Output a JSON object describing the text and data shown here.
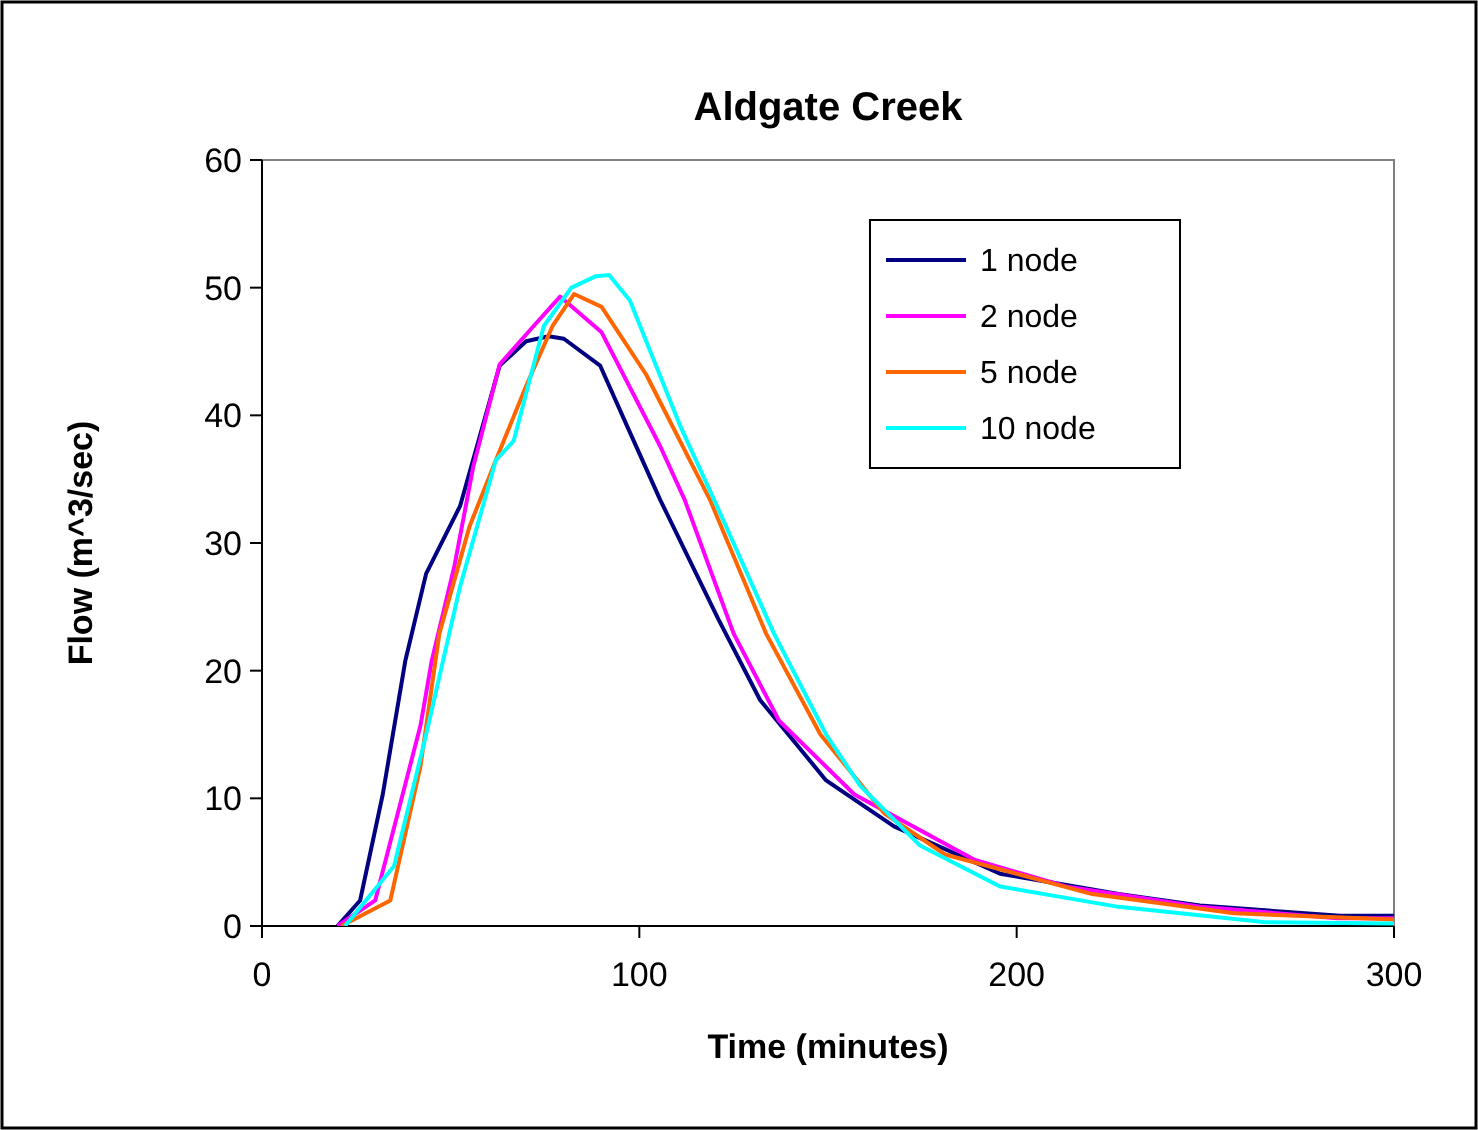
{
  "chart_data": {
    "type": "line",
    "title": "Aldgate Creek",
    "xlabel": "Time (minutes)",
    "ylabel": "Flow (m^3/sec)",
    "xlim": [
      0,
      300
    ],
    "xticks": [
      0,
      100,
      200,
      300
    ],
    "ylim": [
      0,
      60
    ],
    "yticks": [
      0,
      10,
      20,
      30,
      40,
      50,
      60
    ],
    "grid": false,
    "legend": "top right",
    "marker": "none",
    "line_style": "solid",
    "series": [
      {
        "name": "1 node",
        "color": "#000080",
        "x": [
          20,
          26,
          32,
          38,
          43.5,
          52.5,
          63,
          70,
          76,
          80,
          89.6,
          97,
          105.5,
          121,
          132,
          149.5,
          167.5,
          195.6,
          227,
          248.6,
          285.7,
          300
        ],
        "values": [
          0,
          2,
          10.3,
          20.8,
          27.6,
          32.9,
          43.9,
          45.8,
          46.2,
          46,
          43.9,
          39,
          33.4,
          24,
          17.7,
          11.4,
          7.8,
          4.1,
          2.5,
          1.6,
          0.8,
          0.8
        ]
      },
      {
        "name": "2 node",
        "color": "#ff00ff",
        "x": [
          20,
          30,
          42,
          45,
          51,
          56,
          63,
          72,
          79,
          90,
          105.5,
          112,
          125,
          137,
          157,
          188.7,
          213,
          248.6,
          285,
          300
        ],
        "values": [
          0,
          2,
          15.7,
          20.8,
          28.2,
          36,
          44,
          47,
          49.3,
          46.5,
          37.6,
          33.4,
          22.9,
          16.1,
          10.3,
          5.2,
          3.1,
          1.5,
          0.6,
          0.6
        ]
      },
      {
        "name": "5 node",
        "color": "#ff6600",
        "x": [
          21,
          34,
          42,
          47,
          55,
          62,
          70,
          77,
          82.7,
          90,
          101.8,
          118.7,
          133.6,
          148,
          165,
          181,
          220,
          257.6,
          300
        ],
        "values": [
          0,
          2,
          12.5,
          22.9,
          31.3,
          36.5,
          42.3,
          47,
          49.5,
          48.5,
          43.2,
          33.4,
          22.9,
          15,
          8.8,
          5.6,
          2.5,
          1,
          0.5
        ]
      },
      {
        "name": "10 node",
        "color": "#00ffff",
        "x": [
          22,
          35,
          43.5,
          52.5,
          62,
          66.7,
          74.7,
          82,
          88.5,
          92,
          97.5,
          110.8,
          119.8,
          135.7,
          149.5,
          158.5,
          174.4,
          195.6,
          227,
          266,
          300
        ],
        "values": [
          0,
          4.7,
          15,
          26.6,
          36.5,
          38,
          47,
          50,
          50.9,
          51,
          49,
          39.2,
          33.4,
          22.9,
          15,
          11,
          6.3,
          3.1,
          1.5,
          0.3,
          0.2
        ]
      }
    ]
  }
}
